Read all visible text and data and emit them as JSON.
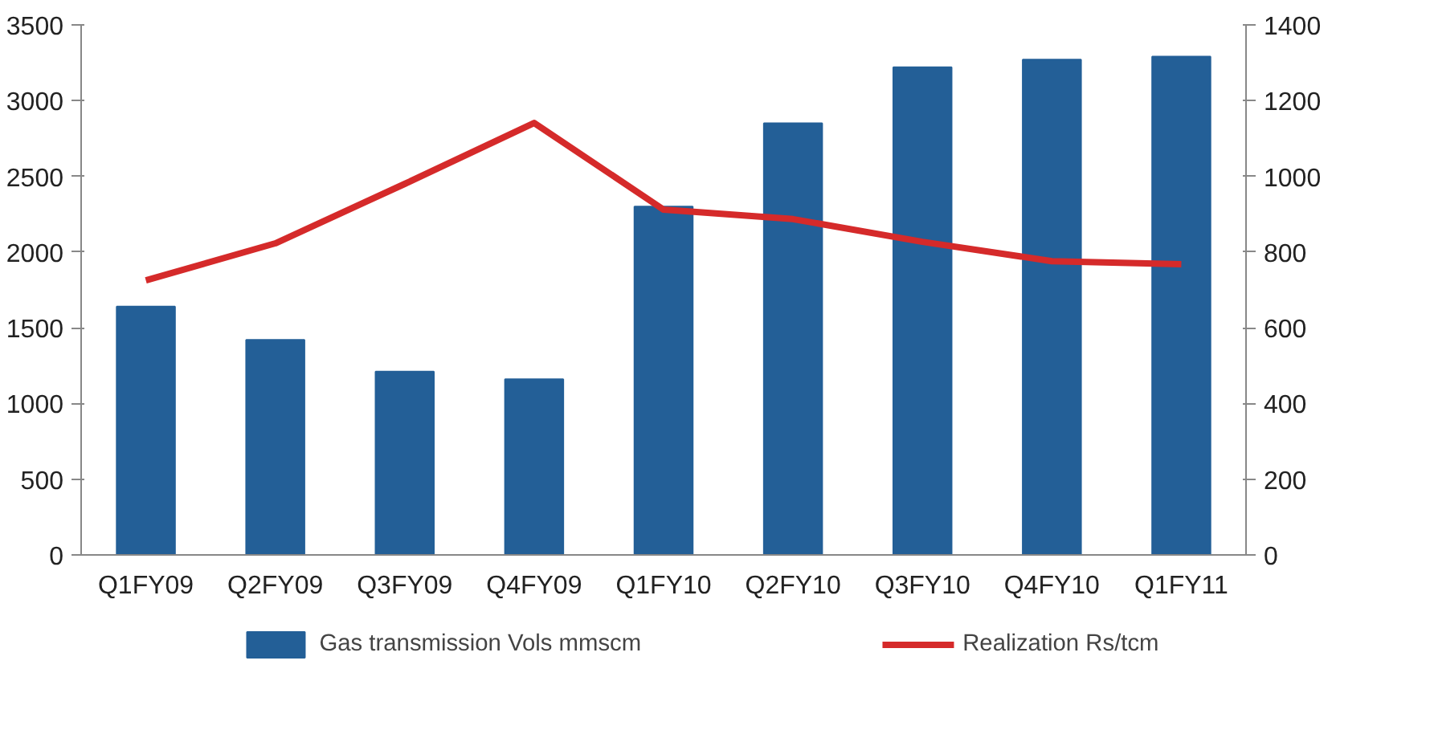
{
  "chart_data": {
    "type": "bar",
    "categories": [
      "Q1FY09",
      "Q2FY09",
      "Q3FY09",
      "Q4FY09",
      "Q1FY10",
      "Q2FY10",
      "Q3FY10",
      "Q4FY10",
      "Q1FY11"
    ],
    "series": [
      {
        "name": "Gas transmission Vols mmscm",
        "color": "#235f97",
        "values": [
          1640,
          1420,
          1210,
          1160,
          2300,
          2850,
          3220,
          3270,
          3290
        ]
      },
      {
        "name": "Realization Rs/tcm",
        "color": "#d52a2a",
        "type": "line",
        "axis": "y2",
        "values": [
          725,
          823,
          980,
          1141,
          912,
          887,
          827,
          776,
          768
        ]
      }
    ],
    "ylim": [
      0,
      3500
    ],
    "yticks": [
      0,
      500,
      1000,
      1500,
      2000,
      2500,
      3000,
      3500
    ],
    "y2lim": [
      0,
      1400
    ],
    "y2ticks": [
      0,
      200,
      400,
      600,
      800,
      1000,
      1200,
      1400
    ],
    "grid": false,
    "legend": "bottom",
    "marker": "none",
    "line_style": "solid"
  }
}
